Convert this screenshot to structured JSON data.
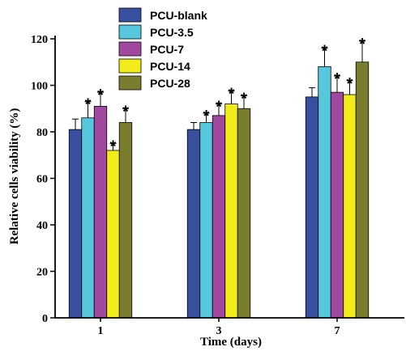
{
  "chart_data": {
    "type": "bar",
    "xlabel": "Time (days)",
    "ylabel": "Relative cells viability (%)",
    "ylim": [
      0,
      120
    ],
    "yticks": [
      "0",
      "20",
      "40",
      "60",
      "80",
      "100",
      "120"
    ],
    "categories": [
      "1",
      "3",
      "7"
    ],
    "legend_position": "top-left",
    "grid": false,
    "significance_marker": "*",
    "series": [
      {
        "name": "PCU-blank",
        "color": "#3850a0",
        "values": [
          81,
          81,
          95
        ],
        "errors": [
          4.5,
          3,
          4
        ],
        "significant": [
          false,
          false,
          false
        ]
      },
      {
        "name": "PCU-3.5",
        "color": "#55c8de",
        "values": [
          86,
          84,
          108
        ],
        "errors": [
          7,
          4,
          8
        ],
        "significant": [
          true,
          true,
          true
        ]
      },
      {
        "name": "PCU-7",
        "color": "#a1489f",
        "values": [
          91,
          87,
          97
        ],
        "errors": [
          6,
          5,
          7
        ],
        "significant": [
          true,
          true,
          true
        ]
      },
      {
        "name": "PCU-14",
        "color": "#f2ec1b",
        "values": [
          72,
          92,
          96
        ],
        "errors": [
          3,
          5.5,
          6
        ],
        "significant": [
          true,
          true,
          true
        ]
      },
      {
        "name": "PCU-28",
        "color": "#7b7d2e",
        "values": [
          84,
          90,
          110
        ],
        "errors": [
          6,
          5.5,
          9
        ],
        "significant": [
          true,
          true,
          true
        ]
      }
    ]
  }
}
